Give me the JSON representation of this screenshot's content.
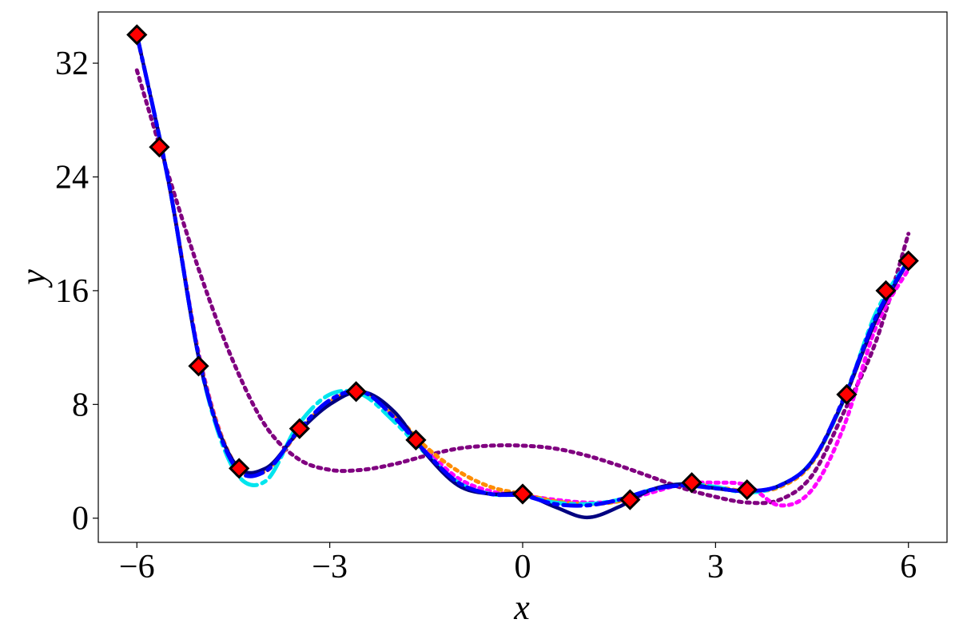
{
  "chart_data": {
    "type": "line",
    "x_label": "x",
    "y_label": "y",
    "xlim": [
      -6.6,
      6.6
    ],
    "ylim": [
      -1.7,
      35.6
    ],
    "xticks": [
      {
        "value": -6,
        "label": "−6"
      },
      {
        "value": -3,
        "label": "−3"
      },
      0,
      3,
      6
    ],
    "yticks": [
      0,
      8,
      16,
      24,
      32
    ],
    "x": [
      -6,
      -5.5,
      -5,
      -4.5,
      -4,
      -3.5,
      -3,
      -2.5,
      -2,
      -1.5,
      -1,
      -0.5,
      0,
      0.5,
      1,
      1.5,
      2,
      2.5,
      3,
      3.5,
      4,
      4.5,
      5,
      5.5,
      6
    ],
    "series": [
      {
        "color": "#800080",
        "style": "dotted",
        "values": [
          31.5,
          24,
          17,
          11,
          6.5,
          4.2,
          3.4,
          3.4,
          3.8,
          4.4,
          4.9,
          5.1,
          5.1,
          4.9,
          4.4,
          3.7,
          2.9,
          2.1,
          1.5,
          1.1,
          1.3,
          3,
          7.5,
          12.5,
          20
        ]
      },
      {
        "color": "#ff00ff",
        "style": "dotted",
        "values": [
          34,
          23.5,
          10.8,
          4,
          3.3,
          6,
          8.2,
          8.8,
          7.2,
          4.8,
          2.8,
          1.9,
          1.6,
          1.3,
          1.1,
          1.2,
          1.8,
          2.4,
          2.5,
          2.3,
          0.9,
          2,
          6.5,
          13.5,
          17.5
        ]
      },
      {
        "color": "#ff8c00",
        "style": "dotted",
        "values": [
          34,
          23.5,
          10.7,
          4,
          3.3,
          6,
          8.2,
          8.8,
          7.3,
          5,
          3.3,
          2.2,
          1.7,
          1.2,
          1,
          1.2,
          2,
          2.4,
          2.2,
          1.9,
          2.2,
          3.9,
          8.4,
          14,
          18.1
        ]
      },
      {
        "color": "#00e5ee",
        "style": "dashdot",
        "values": [
          34,
          23.5,
          10.5,
          3.5,
          2.6,
          6.5,
          8.7,
          8.7,
          6.8,
          4.5,
          2.5,
          1.7,
          1.6,
          1.1,
          1,
          1.3,
          2,
          2.4,
          2.2,
          1.8,
          2.3,
          4,
          8.4,
          14.5,
          18.1
        ]
      },
      {
        "color": "#000080",
        "style": "solid",
        "values": [
          34,
          23.5,
          10.5,
          4,
          3.5,
          6,
          8,
          8.9,
          7.5,
          4.5,
          2.3,
          1.7,
          1.7,
          0.8,
          0.05,
          0.8,
          2,
          2.4,
          2.1,
          1.9,
          2.3,
          4,
          8.4,
          14,
          18.1
        ]
      },
      {
        "color": "#0000ff",
        "style": "dashdot",
        "values": [
          34,
          23.5,
          10.6,
          3.8,
          3.3,
          6.1,
          8.3,
          8.9,
          7.1,
          4.6,
          2.5,
          1.7,
          1.6,
          1,
          0.9,
          1.3,
          2,
          2.3,
          2.1,
          1.9,
          2.3,
          4,
          8.5,
          14.2,
          18.1
        ]
      }
    ],
    "points": {
      "color": "#ff0000",
      "edge_color": "#000000",
      "x": [
        -6,
        -5.65,
        -5.04,
        -4.41,
        -3.47,
        -2.59,
        -1.66,
        0,
        1.67,
        2.63,
        3.49,
        5.04,
        5.65,
        6
      ],
      "values": [
        34,
        26.1,
        10.7,
        3.5,
        6.3,
        8.9,
        5.5,
        1.7,
        1.3,
        2.5,
        2,
        8.7,
        16,
        18.1
      ]
    }
  }
}
